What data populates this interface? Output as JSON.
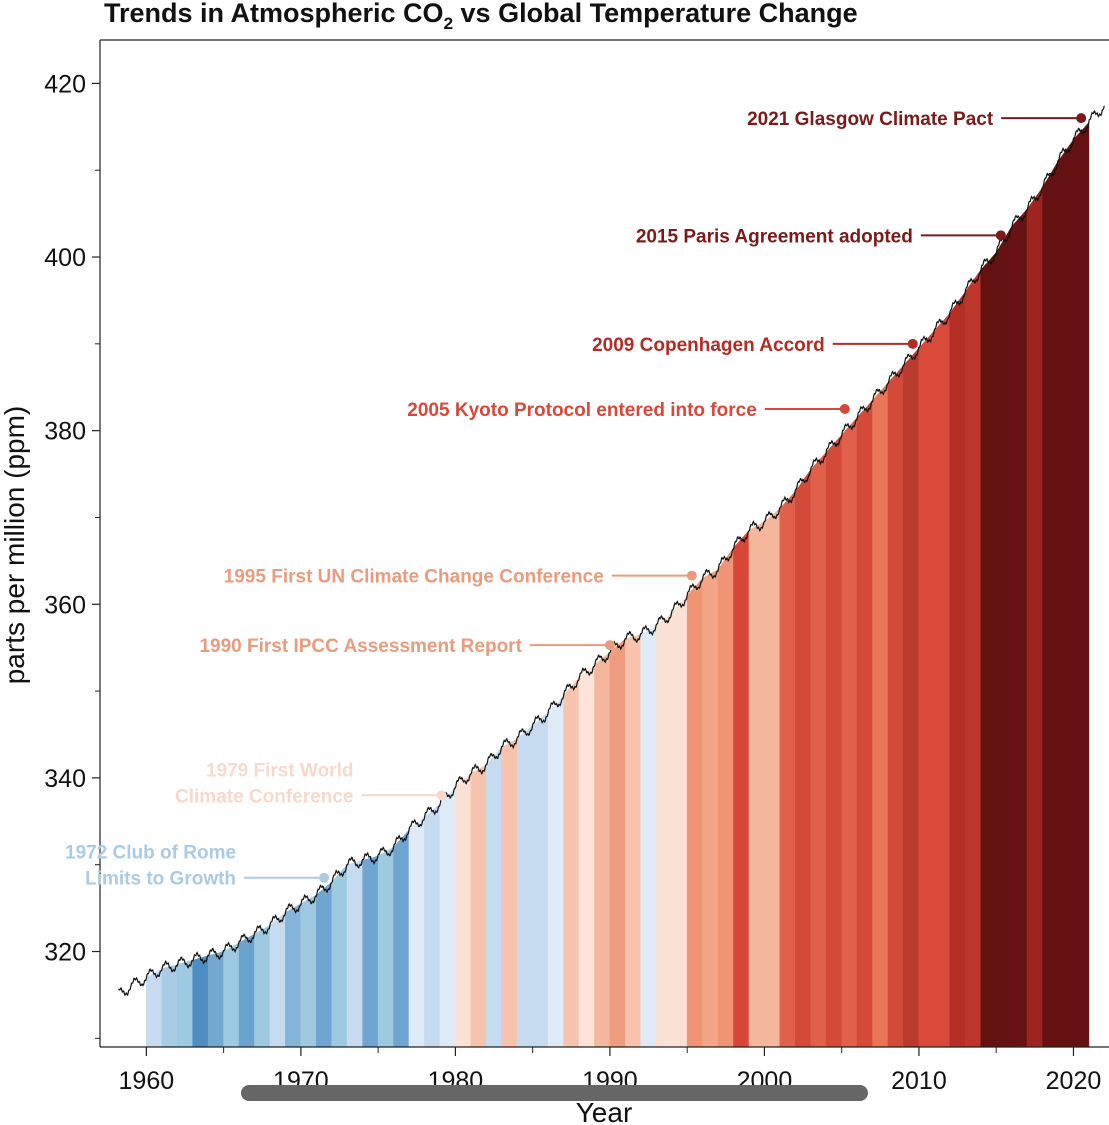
{
  "chart_data": {
    "type": "area",
    "title": "Trends in Atmospheric CO",
    "title_sub": "2",
    "title_rest": " vs Global Temperature Change",
    "xlabel": "Year",
    "ylabel": "parts per million (ppm)",
    "xlim": [
      1957.0,
      2022.3
    ],
    "ylim": [
      309.0,
      425.0
    ],
    "x_ticks": [
      1960,
      1970,
      1980,
      1990,
      2000,
      2010,
      2020
    ],
    "y_ticks": [
      320,
      340,
      360,
      380,
      400,
      420
    ],
    "grid": false,
    "series": [
      {
        "values_key": "co2",
        "x": [
          1958.2,
          1959,
          1960,
          1961,
          1962,
          1963,
          1964,
          1965,
          1966,
          1967,
          1968,
          1969,
          1970,
          1971,
          1972,
          1973,
          1974,
          1975,
          1976,
          1977,
          1978,
          1979,
          1980,
          1981,
          1982,
          1983,
          1984,
          1985,
          1986,
          1987,
          1988,
          1989,
          1990,
          1991,
          1992,
          1993,
          1994,
          1995,
          1996,
          1997,
          1998,
          1999,
          2000,
          2001,
          2002,
          2003,
          2004,
          2005,
          2006,
          2007,
          2008,
          2009,
          2010,
          2011,
          2012,
          2013,
          2014,
          2015,
          2016,
          2017,
          2018,
          2019,
          2020,
          2021,
          2022
        ],
        "y": [
          315.0,
          316.0,
          317.0,
          318.0,
          318.5,
          319.0,
          319.5,
          320.0,
          321.0,
          322.0,
          323.0,
          324.5,
          325.5,
          326.5,
          328.0,
          330.0,
          330.5,
          331.0,
          332.0,
          334.0,
          335.5,
          337.0,
          339.0,
          340.5,
          341.5,
          343.5,
          344.5,
          346.0,
          347.5,
          349.5,
          351.5,
          353.0,
          354.5,
          356.0,
          356.5,
          357.5,
          359.0,
          361.0,
          363.0,
          364.0,
          366.5,
          368.5,
          369.5,
          371.0,
          373.0,
          375.5,
          377.5,
          379.5,
          381.5,
          383.5,
          385.5,
          387.5,
          389.5,
          391.5,
          393.5,
          396.0,
          398.5,
          400.5,
          403.5,
          405.5,
          408.0,
          411.0,
          413.5,
          415.5,
          417.5
        ]
      }
    ],
    "stripes": {
      "start_year": 1960,
      "colors": [
        "#c6dbef",
        "#a9cbe3",
        "#9ecae1",
        "#4e8ec3",
        "#74a9cf",
        "#9ecae1",
        "#6ba3cf",
        "#9ecae1",
        "#c6dbef",
        "#84b4d8",
        "#9ecae1",
        "#6fa5d0",
        "#9ecae1",
        "#c6dbef",
        "#6fa5d0",
        "#9ecae1",
        "#6fa5d0",
        "#deebf7",
        "#c6dbef",
        "#deebf7",
        "#fbe0d4",
        "#f7c3ac",
        "#c6dbef",
        "#f7c3ac",
        "#c6dbef",
        "#c6dbef",
        "#deebf7",
        "#f7c3ac",
        "#fde3d8",
        "#f4b79b",
        "#ef9c7f",
        "#f7c3ac",
        "#deebf7",
        "#fbe0d4",
        "#fbe0d4",
        "#f09474",
        "#f2a687",
        "#f09474",
        "#d84638",
        "#f4b79b",
        "#f4b79b",
        "#e0604a",
        "#d44a39",
        "#e0604a",
        "#d44a39",
        "#e0604a",
        "#d44a39",
        "#e87555",
        "#d44a39",
        "#b83b2d",
        "#d94a3a",
        "#d94a3a",
        "#b52f26",
        "#bd362b",
        "#661111",
        "#651212",
        "#6a1213",
        "#9e2420",
        "#661111",
        "#661111",
        "#661111"
      ]
    }
  },
  "annotations": [
    {
      "lines": [
        "2021 Glasgow Climate Pact"
      ],
      "year": 2020.5,
      "ppm": 416.0,
      "color": "#7a1a1a"
    },
    {
      "lines": [
        "2015 Paris Agreement adopted"
      ],
      "year": 2015.3,
      "ppm": 402.5,
      "color": "#7a1a1a"
    },
    {
      "lines": [
        "2009 Copenhagen Accord"
      ],
      "year": 2009.6,
      "ppm": 390.0,
      "color": "#b52a24"
    },
    {
      "lines": [
        "2005 Kyoto Protocol entered into force"
      ],
      "year": 2005.2,
      "ppm": 382.5,
      "color": "#d8473a"
    },
    {
      "lines": [
        "1995 First UN Climate Change Conference"
      ],
      "year": 1995.3,
      "ppm": 363.3,
      "color": "#e99c7d"
    },
    {
      "lines": [
        "1990 First IPCC Assessment Report"
      ],
      "year": 1990.0,
      "ppm": 355.3,
      "color": "#e99c7d"
    },
    {
      "lines": [
        "1979 First World",
        "Climate Conference"
      ],
      "year": 1979.1,
      "ppm": 338.0,
      "color": "#f6d9cb"
    },
    {
      "lines": [
        "1972 Club of Rome",
        "Limits to Growth"
      ],
      "year": 1971.5,
      "ppm": 328.5,
      "color": "#a9cbe3"
    }
  ],
  "ui": {
    "scrollbar_color": "#666666"
  }
}
